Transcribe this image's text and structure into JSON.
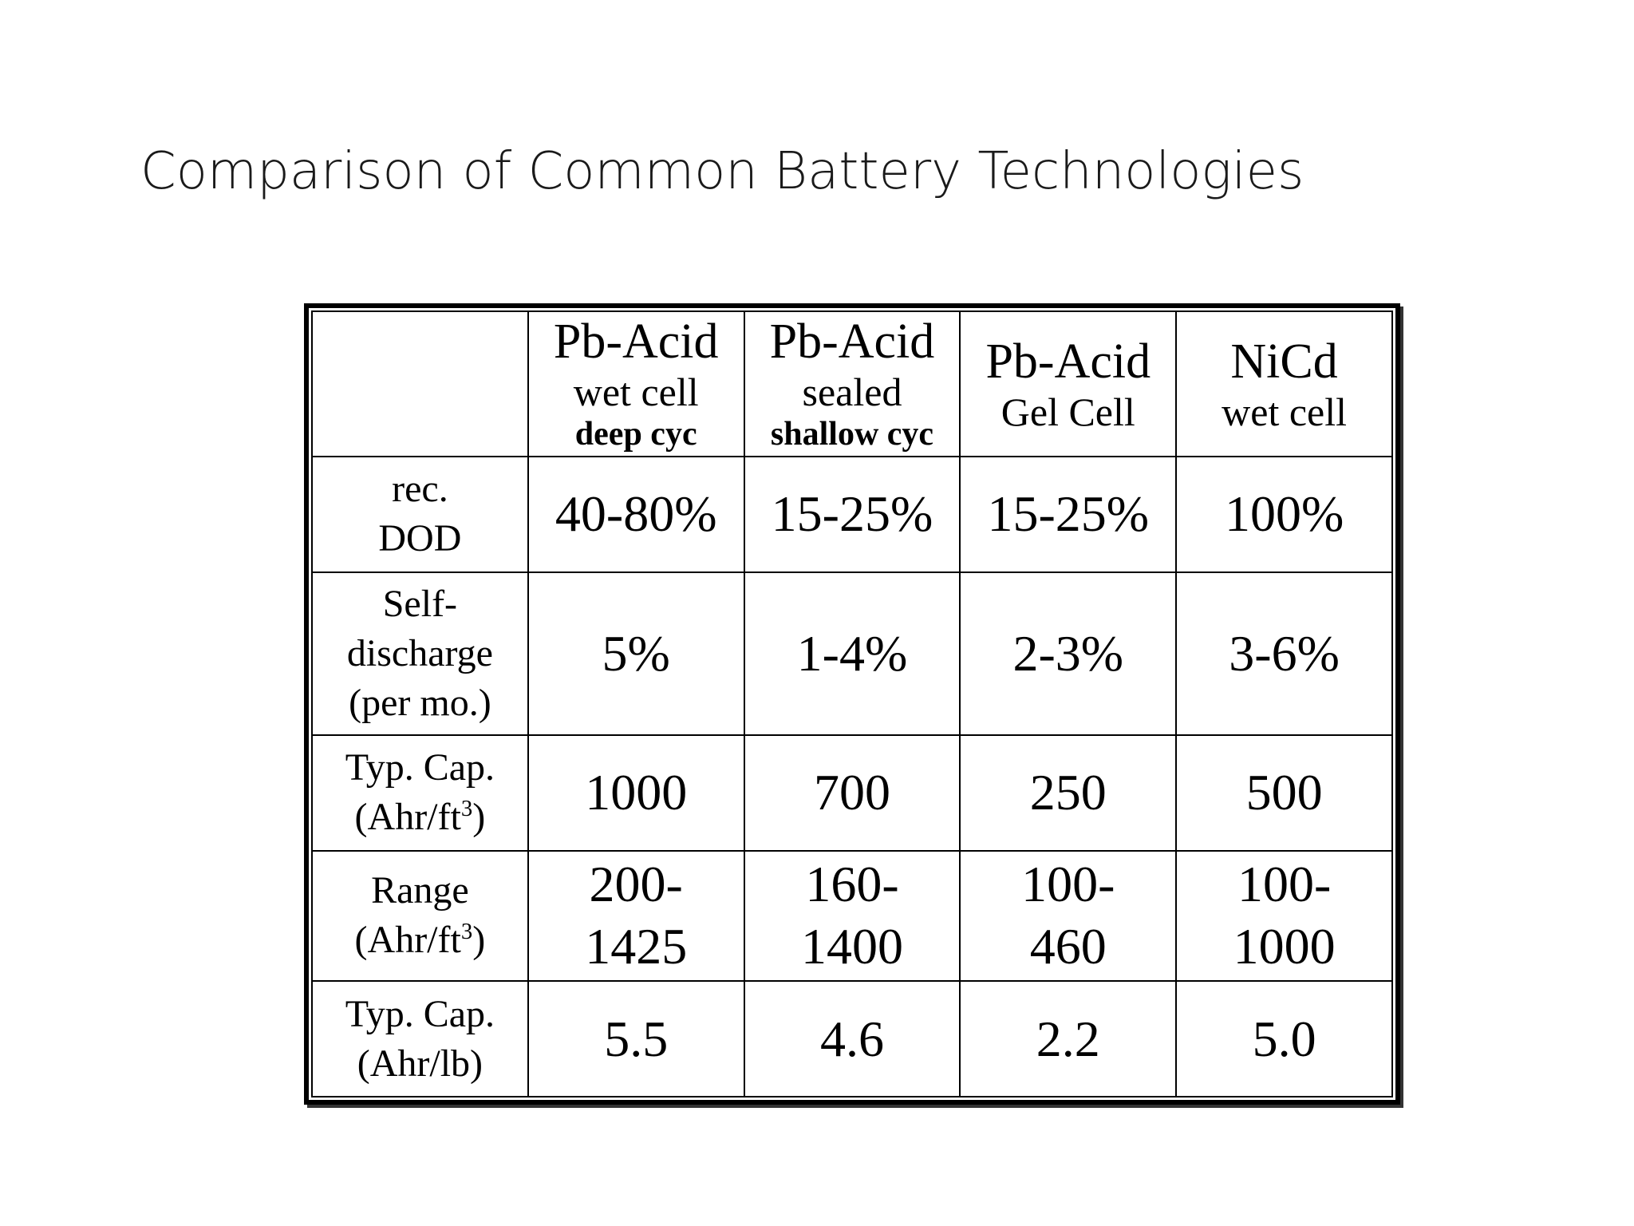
{
  "slide": {
    "title": "Comparison of Common Battery Technologies"
  },
  "table": {
    "columns": [
      {
        "name": "Pb-Acid",
        "line2": "wet cell",
        "line3": "deep cyc"
      },
      {
        "name": "Pb-Acid",
        "line2": "sealed",
        "line3": "shallow cyc"
      },
      {
        "name": "Pb-Acid",
        "line2": "Gel Cell"
      },
      {
        "name": "NiCd",
        "line2": "wet cell"
      }
    ],
    "rows": [
      {
        "label_lines": [
          "rec.",
          "DOD"
        ],
        "values": [
          "40-80%",
          "15-25%",
          "15-25%",
          "100%"
        ]
      },
      {
        "label_lines": [
          "Self-",
          "discharge",
          "(per mo.)"
        ],
        "values": [
          "5%",
          "1-4%",
          "2-3%",
          "3-6%"
        ]
      },
      {
        "label_line1": "Typ. Cap.",
        "label_unit_base": "(Ahr/ft",
        "label_unit_sup": "3",
        "label_unit_close": ")",
        "values": [
          "1000",
          "700",
          "250",
          "500"
        ]
      },
      {
        "label_line1": "Range",
        "label_unit_base": "(Ahr/ft",
        "label_unit_sup": "3",
        "label_unit_close": ")",
        "values": [
          [
            "200-",
            "1425"
          ],
          [
            "160-",
            "1400"
          ],
          [
            "100-",
            "460"
          ],
          [
            "100-",
            "1000"
          ]
        ]
      },
      {
        "label_lines": [
          "Typ. Cap.",
          "(Ahr/lb)"
        ],
        "values": [
          "5.5",
          "4.6",
          "2.2",
          "5.0"
        ]
      }
    ]
  }
}
